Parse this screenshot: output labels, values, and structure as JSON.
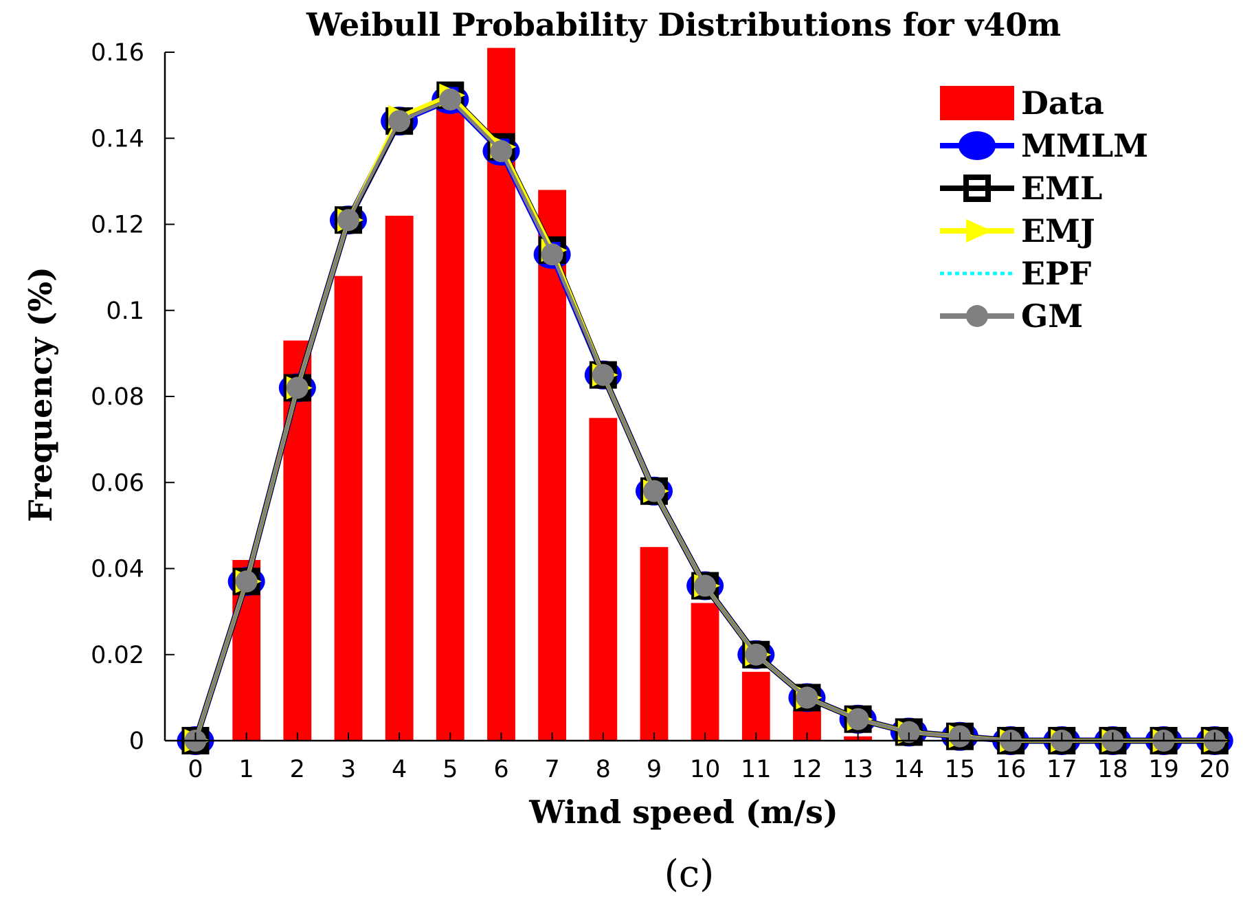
{
  "chart_data": {
    "type": "bar",
    "title": "Weibull Probability Distributions for v40m",
    "xlabel": "Wind speed (m/s)",
    "ylabel": "Frequency (%)",
    "panel_label": "(c)",
    "xlim": [
      -0.6,
      20.3
    ],
    "ylim": [
      0,
      0.16
    ],
    "x": [
      0,
      1,
      2,
      3,
      4,
      5,
      6,
      7,
      8,
      9,
      10,
      11,
      12,
      13,
      14,
      15,
      16,
      17,
      18,
      19,
      20
    ],
    "x_tick_labels": [
      "0",
      "1",
      "2",
      "3",
      "4",
      "5",
      "6",
      "7",
      "8",
      "9",
      "10",
      "11",
      "12",
      "13",
      "14",
      "15",
      "16",
      "17",
      "18",
      "19",
      "20"
    ],
    "y_ticks": [
      0,
      0.02,
      0.04,
      0.06,
      0.08,
      0.1,
      0.12,
      0.14,
      0.16
    ],
    "y_tick_labels": [
      "0",
      "0.02",
      "0.04",
      "0.06",
      "0.08",
      "0.1",
      "0.12",
      "0.14",
      "0.16"
    ],
    "series": [
      {
        "name": "Data",
        "kind": "bar",
        "color": "#ff0000",
        "values": [
          0,
          0.042,
          0.093,
          0.108,
          0.122,
          0.147,
          0.161,
          0.128,
          0.075,
          0.045,
          0.032,
          0.016,
          0.007,
          0.001,
          0,
          0,
          0,
          0,
          0,
          0,
          0
        ]
      },
      {
        "name": "MMLM",
        "kind": "line",
        "marker": "circle",
        "color": "#0000ff",
        "values": [
          0,
          0.037,
          0.082,
          0.121,
          0.144,
          0.149,
          0.137,
          0.113,
          0.085,
          0.058,
          0.036,
          0.02,
          0.01,
          0.005,
          0.002,
          0.001,
          0,
          0,
          0,
          0,
          0
        ]
      },
      {
        "name": "EML",
        "kind": "line",
        "marker": "square",
        "color": "#000000",
        "values": [
          0,
          0.037,
          0.082,
          0.121,
          0.144,
          0.15,
          0.138,
          0.114,
          0.085,
          0.058,
          0.036,
          0.02,
          0.01,
          0.005,
          0.002,
          0.001,
          0,
          0,
          0,
          0,
          0
        ]
      },
      {
        "name": "EMJ",
        "kind": "line",
        "marker": "triangle-right",
        "color": "#ffff00",
        "values": [
          0,
          0.037,
          0.082,
          0.121,
          0.145,
          0.15,
          0.138,
          0.114,
          0.085,
          0.058,
          0.036,
          0.02,
          0.01,
          0.005,
          0.002,
          0.001,
          0,
          0,
          0,
          0,
          0
        ]
      },
      {
        "name": "EPF",
        "kind": "line",
        "marker": "none",
        "dashed": true,
        "color": "#00ffff",
        "values": [
          0,
          0.037,
          0.082,
          0.121,
          0.144,
          0.149,
          0.137,
          0.113,
          0.085,
          0.058,
          0.036,
          0.02,
          0.01,
          0.005,
          0.002,
          0.001,
          0,
          0,
          0,
          0,
          0
        ]
      },
      {
        "name": "GM",
        "kind": "line",
        "marker": "dot",
        "color": "#808080",
        "values": [
          0,
          0.037,
          0.082,
          0.121,
          0.144,
          0.149,
          0.137,
          0.113,
          0.085,
          0.058,
          0.036,
          0.02,
          0.01,
          0.005,
          0.002,
          0.001,
          0,
          0,
          0,
          0,
          0
        ]
      }
    ],
    "legend": {
      "position": "top-right",
      "entries": [
        "Data",
        "MMLM",
        "EML",
        "EMJ",
        "EPF",
        "GM"
      ]
    },
    "grid": false
  }
}
